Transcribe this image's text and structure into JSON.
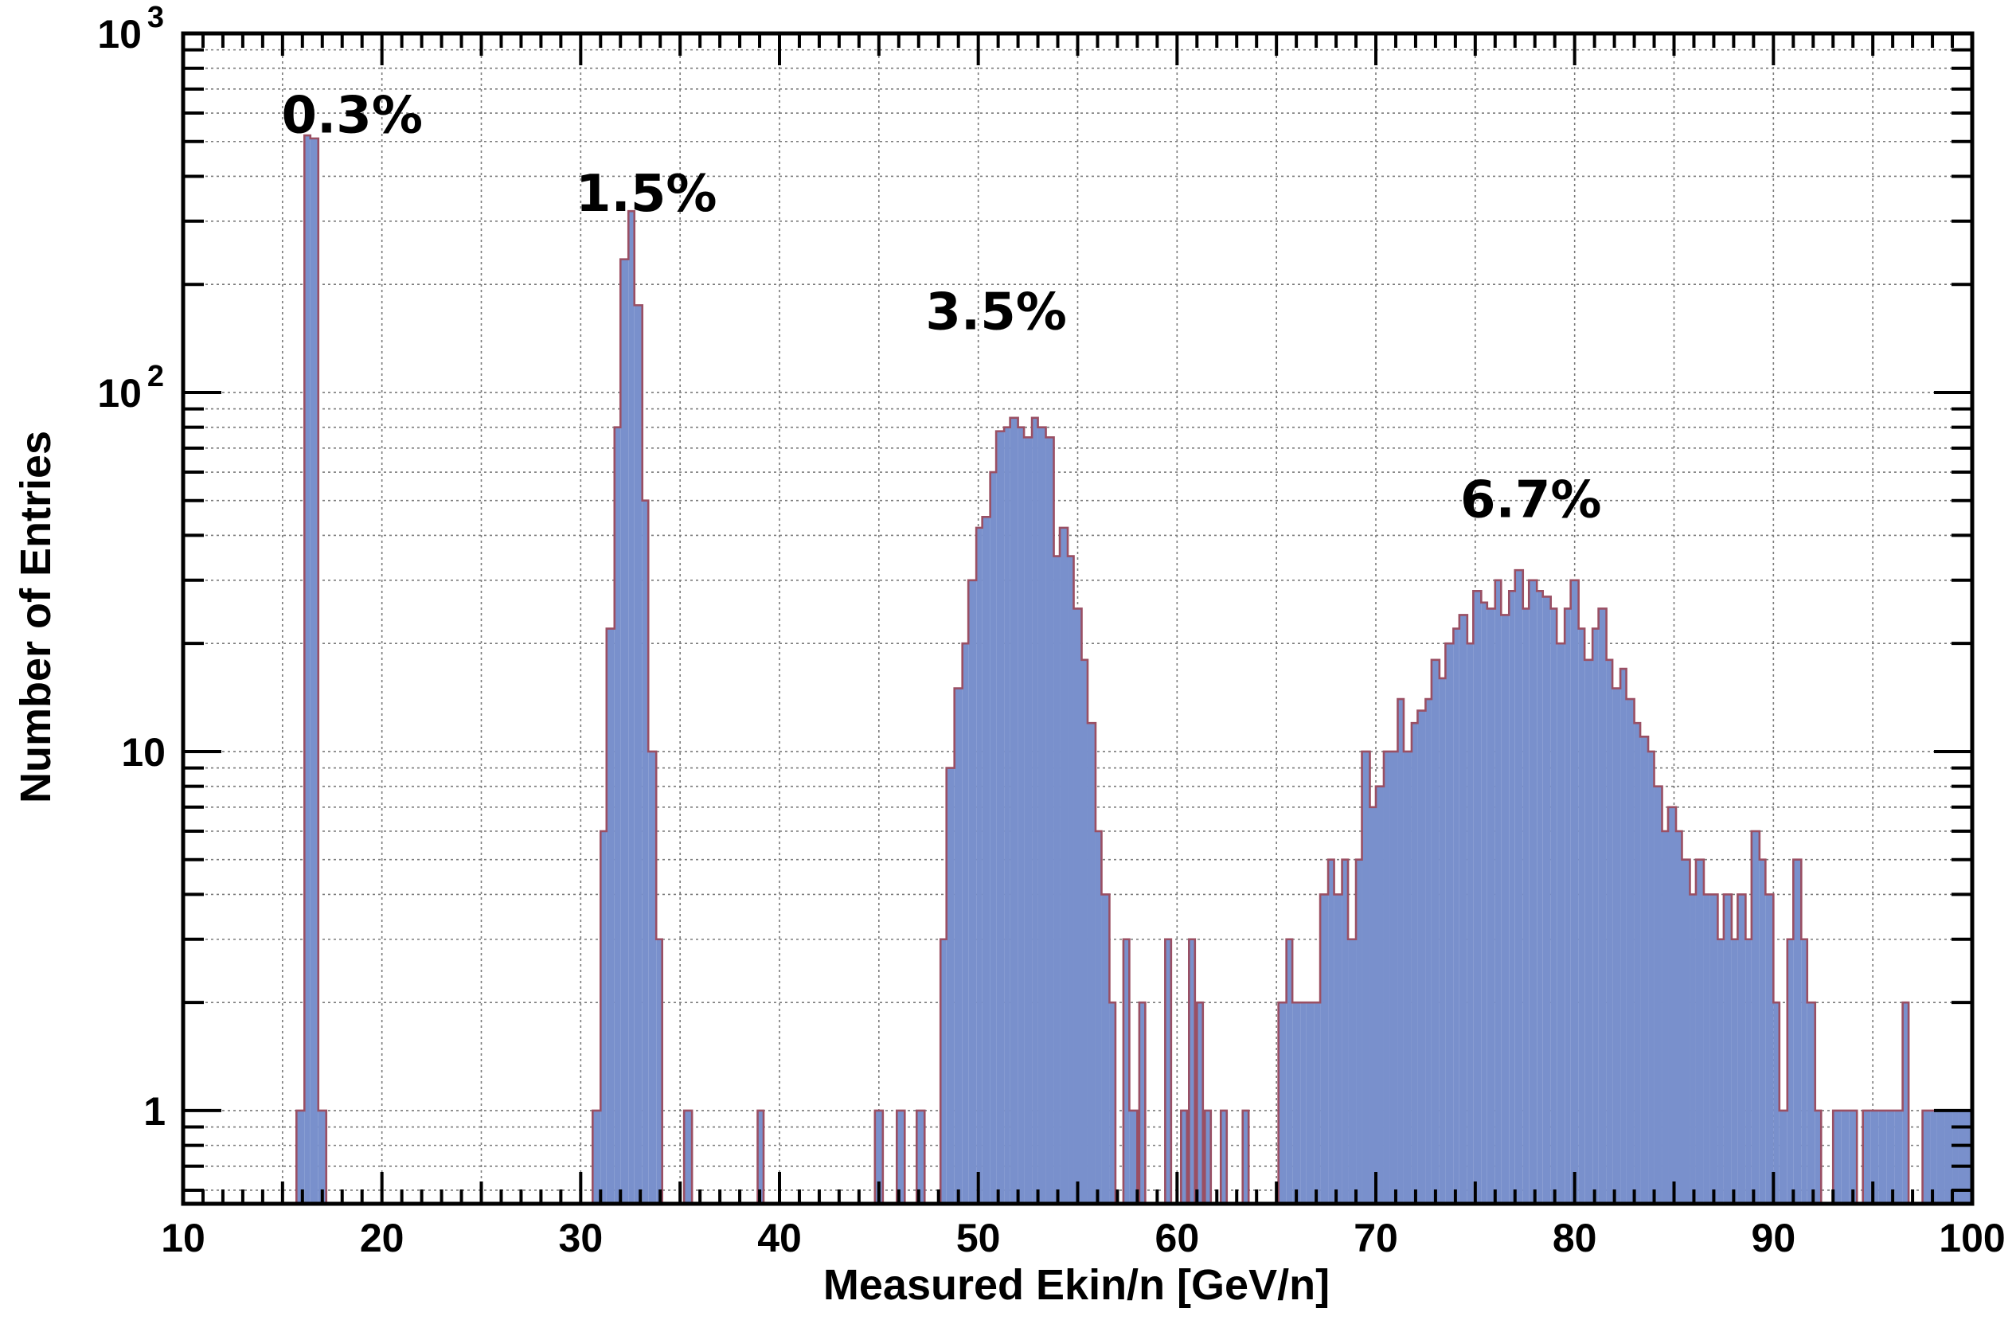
{
  "chart_data": {
    "type": "bar",
    "histogram": true,
    "xlabel": "Measured Ekin/n [GeV/n]",
    "ylabel": "Number of Entries",
    "xlim": [
      10,
      100
    ],
    "ylim": [
      0.55,
      1000
    ],
    "yscale": "log",
    "grid": true,
    "x_ticks": [
      "10",
      "20",
      "30",
      "40",
      "50",
      "60",
      "70",
      "80",
      "90",
      "100"
    ],
    "y_ticks": [
      {
        "value": 1,
        "base": "1",
        "exp": ""
      },
      {
        "value": 10,
        "base": "10",
        "exp": ""
      },
      {
        "value": 100,
        "base": "10",
        "exp": "2"
      },
      {
        "value": 1000,
        "base": "10",
        "exp": "3"
      }
    ],
    "annotations": [
      {
        "text": "0.3%",
        "x": 18.5,
        "y": 530
      },
      {
        "text": "1.5%",
        "x": 33.3,
        "y": 320
      },
      {
        "text": "3.5%",
        "x": 50.9,
        "y": 150
      },
      {
        "text": "6.7%",
        "x": 77.8,
        "y": 45
      }
    ],
    "bins": [
      [
        15.7,
        16.1,
        1
      ],
      [
        16.1,
        16.4,
        520
      ],
      [
        16.4,
        16.8,
        510
      ],
      [
        16.8,
        17.2,
        1
      ],
      [
        30.6,
        31.0,
        1
      ],
      [
        31.0,
        31.3,
        6
      ],
      [
        31.3,
        31.7,
        22
      ],
      [
        31.7,
        32.0,
        80
      ],
      [
        32.0,
        32.4,
        235
      ],
      [
        32.4,
        32.7,
        320
      ],
      [
        32.7,
        33.1,
        175
      ],
      [
        33.1,
        33.4,
        50
      ],
      [
        33.4,
        33.8,
        10
      ],
      [
        33.8,
        34.1,
        3
      ],
      [
        35.2,
        35.6,
        1
      ],
      [
        38.9,
        39.2,
        1
      ],
      [
        44.8,
        45.2,
        1
      ],
      [
        45.9,
        46.3,
        1
      ],
      [
        46.9,
        47.3,
        1
      ],
      [
        48.1,
        48.4,
        3
      ],
      [
        48.4,
        48.8,
        9
      ],
      [
        48.8,
        49.2,
        15
      ],
      [
        49.2,
        49.5,
        20
      ],
      [
        49.5,
        49.9,
        30
      ],
      [
        49.9,
        50.2,
        42
      ],
      [
        50.2,
        50.6,
        45
      ],
      [
        50.6,
        50.9,
        60
      ],
      [
        50.9,
        51.3,
        78
      ],
      [
        51.3,
        51.6,
        80
      ],
      [
        51.6,
        52.0,
        85
      ],
      [
        52.0,
        52.3,
        80
      ],
      [
        52.3,
        52.7,
        75
      ],
      [
        52.7,
        53.0,
        85
      ],
      [
        53.0,
        53.4,
        80
      ],
      [
        53.4,
        53.8,
        75
      ],
      [
        53.8,
        54.1,
        35
      ],
      [
        54.1,
        54.5,
        42
      ],
      [
        54.5,
        54.8,
        35
      ],
      [
        54.8,
        55.2,
        25
      ],
      [
        55.2,
        55.5,
        18
      ],
      [
        55.5,
        55.9,
        12
      ],
      [
        55.9,
        56.2,
        6
      ],
      [
        56.2,
        56.6,
        4
      ],
      [
        56.6,
        56.9,
        2
      ],
      [
        57.3,
        57.6,
        3
      ],
      [
        57.6,
        58.0,
        1
      ],
      [
        58.1,
        58.4,
        2
      ],
      [
        59.4,
        59.7,
        3
      ],
      [
        60.2,
        60.5,
        1
      ],
      [
        60.6,
        60.9,
        3
      ],
      [
        61.0,
        61.3,
        2
      ],
      [
        61.4,
        61.7,
        1
      ],
      [
        62.2,
        62.5,
        1
      ],
      [
        63.3,
        63.6,
        1
      ],
      [
        65.1,
        65.5,
        2
      ],
      [
        65.5,
        65.8,
        3
      ],
      [
        65.8,
        66.2,
        2
      ],
      [
        66.2,
        66.5,
        2
      ],
      [
        66.5,
        66.9,
        2
      ],
      [
        66.9,
        67.2,
        2
      ],
      [
        67.2,
        67.6,
        4
      ],
      [
        67.6,
        67.9,
        5
      ],
      [
        67.9,
        68.3,
        4
      ],
      [
        68.3,
        68.6,
        5
      ],
      [
        68.6,
        69.0,
        3
      ],
      [
        69.0,
        69.3,
        5
      ],
      [
        69.3,
        69.7,
        10
      ],
      [
        69.7,
        70.0,
        7
      ],
      [
        70.0,
        70.4,
        8
      ],
      [
        70.4,
        70.7,
        10
      ],
      [
        70.7,
        71.1,
        10
      ],
      [
        71.1,
        71.4,
        14
      ],
      [
        71.4,
        71.8,
        10
      ],
      [
        71.8,
        72.1,
        12
      ],
      [
        72.1,
        72.5,
        13
      ],
      [
        72.5,
        72.8,
        14
      ],
      [
        72.8,
        73.2,
        18
      ],
      [
        73.2,
        73.5,
        16
      ],
      [
        73.5,
        73.9,
        20
      ],
      [
        73.9,
        74.2,
        22
      ],
      [
        74.2,
        74.6,
        24
      ],
      [
        74.6,
        74.9,
        20
      ],
      [
        74.9,
        75.3,
        28
      ],
      [
        75.3,
        75.6,
        26
      ],
      [
        75.6,
        76.0,
        25
      ],
      [
        76.0,
        76.3,
        30
      ],
      [
        76.3,
        76.7,
        24
      ],
      [
        76.7,
        77.0,
        28
      ],
      [
        77.0,
        77.4,
        32
      ],
      [
        77.4,
        77.7,
        25
      ],
      [
        77.7,
        78.1,
        30
      ],
      [
        78.1,
        78.4,
        28
      ],
      [
        78.4,
        78.8,
        27
      ],
      [
        78.8,
        79.1,
        25
      ],
      [
        79.1,
        79.5,
        20
      ],
      [
        79.5,
        79.8,
        25
      ],
      [
        79.8,
        80.2,
        30
      ],
      [
        80.2,
        80.5,
        22
      ],
      [
        80.5,
        80.9,
        18
      ],
      [
        80.9,
        81.2,
        22
      ],
      [
        81.2,
        81.6,
        25
      ],
      [
        81.6,
        81.9,
        18
      ],
      [
        81.9,
        82.3,
        15
      ],
      [
        82.3,
        82.6,
        17
      ],
      [
        82.6,
        83.0,
        14
      ],
      [
        83.0,
        83.3,
        12
      ],
      [
        83.3,
        83.7,
        11
      ],
      [
        83.7,
        84.0,
        10
      ],
      [
        84.0,
        84.4,
        8
      ],
      [
        84.4,
        84.7,
        6
      ],
      [
        84.7,
        85.1,
        7
      ],
      [
        85.1,
        85.4,
        6
      ],
      [
        85.4,
        85.8,
        5
      ],
      [
        85.8,
        86.1,
        4
      ],
      [
        86.1,
        86.5,
        5
      ],
      [
        86.5,
        86.8,
        4
      ],
      [
        86.8,
        87.2,
        4
      ],
      [
        87.2,
        87.5,
        3
      ],
      [
        87.5,
        87.9,
        4
      ],
      [
        87.9,
        88.2,
        3
      ],
      [
        88.2,
        88.6,
        4
      ],
      [
        88.6,
        88.9,
        3
      ],
      [
        88.9,
        89.3,
        6
      ],
      [
        89.3,
        89.6,
        5
      ],
      [
        89.6,
        90.0,
        4
      ],
      [
        90.0,
        90.3,
        2
      ],
      [
        90.3,
        90.7,
        1
      ],
      [
        90.7,
        91.0,
        3
      ],
      [
        91.0,
        91.4,
        5
      ],
      [
        91.4,
        91.7,
        3
      ],
      [
        91.7,
        92.1,
        2
      ],
      [
        92.1,
        92.4,
        1
      ],
      [
        93.0,
        93.4,
        1
      ],
      [
        93.4,
        93.8,
        1
      ],
      [
        93.8,
        94.2,
        1
      ],
      [
        94.5,
        94.9,
        1
      ],
      [
        94.9,
        95.3,
        1
      ],
      [
        95.3,
        95.7,
        1
      ],
      [
        95.7,
        96.1,
        1
      ],
      [
        96.1,
        96.5,
        1
      ],
      [
        96.5,
        96.8,
        2
      ],
      [
        97.5,
        97.9,
        1
      ],
      [
        97.9,
        98.2,
        1
      ],
      [
        98.2,
        98.6,
        1
      ],
      [
        98.6,
        99.0,
        1
      ],
      [
        99.0,
        99.3,
        1
      ],
      [
        99.3,
        99.7,
        1
      ],
      [
        99.7,
        100.0,
        1
      ]
    ]
  }
}
